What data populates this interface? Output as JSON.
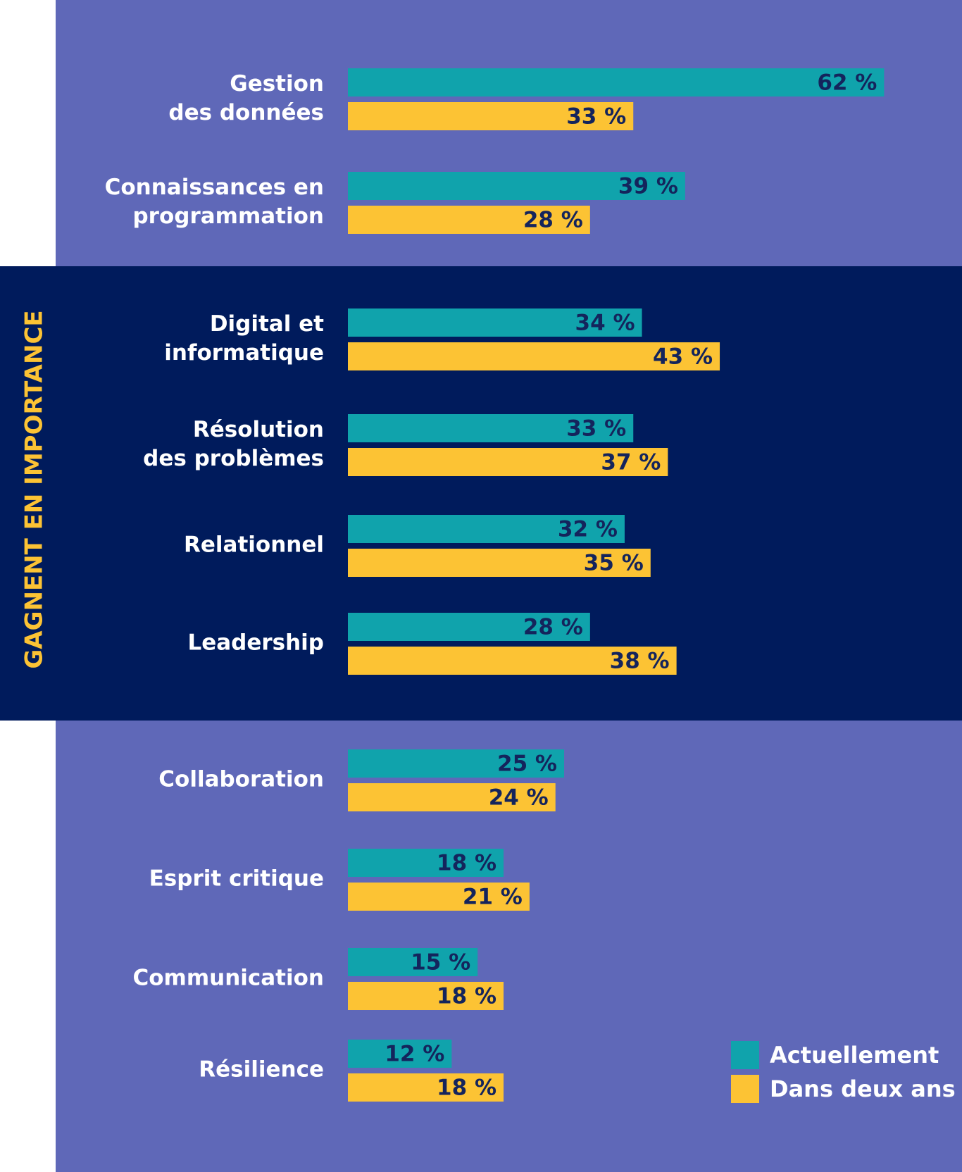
{
  "chart_data": {
    "type": "bar",
    "orientation": "horizontal",
    "categories": [
      [
        "Gestion",
        "des données"
      ],
      [
        "Connaissances en",
        "programmation"
      ],
      [
        "Digital et",
        "informatique"
      ],
      [
        "Résolution",
        "des problèmes"
      ],
      [
        "Relationnel"
      ],
      [
        "Leadership"
      ],
      [
        "Collaboration"
      ],
      [
        "Esprit critique"
      ],
      [
        "Communication"
      ],
      [
        "Résilience"
      ]
    ],
    "series": [
      {
        "name": "Actuellement",
        "color": "#10a3ac",
        "values": [
          62,
          39,
          34,
          33,
          32,
          28,
          25,
          18,
          15,
          12
        ],
        "value_labels": [
          "62 %",
          "39 %",
          "34 %",
          "33 %",
          "32 %",
          "28 %",
          "25 %",
          "18 %",
          "15 %",
          "12 %"
        ]
      },
      {
        "name": "Dans deux ans",
        "color": "#fcc334",
        "values": [
          33,
          28,
          43,
          37,
          35,
          38,
          24,
          21,
          18,
          18
        ],
        "value_labels": [
          "33 %",
          "28 %",
          "43 %",
          "37 %",
          "35 %",
          "38 %",
          "24 %",
          "21 %",
          "18 %",
          "18 %"
        ]
      }
    ],
    "annotation": "GAGNENT EN IMPORTANCE",
    "legend": "bottom-right"
  }
}
